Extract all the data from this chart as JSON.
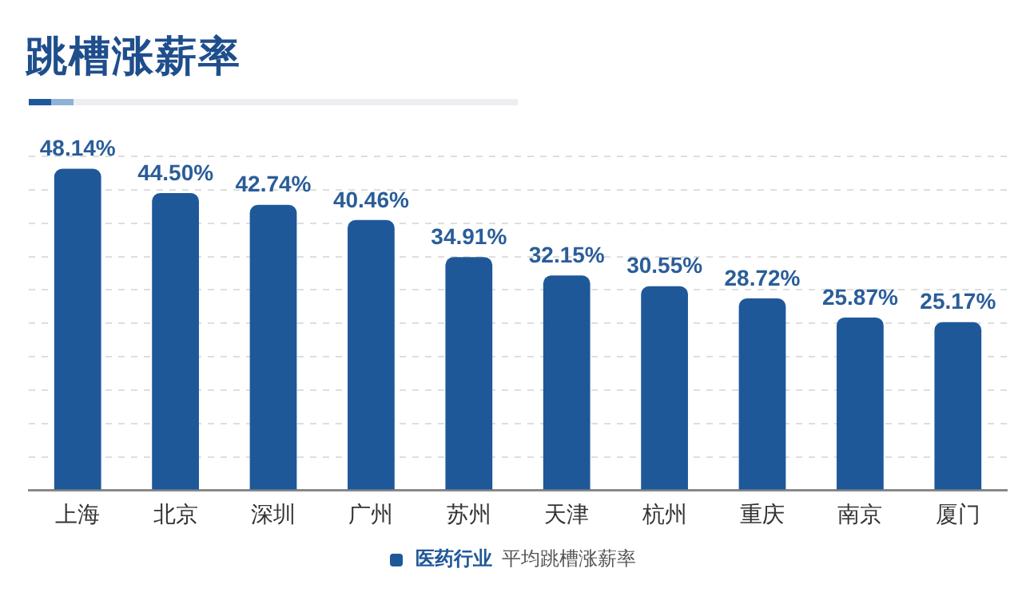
{
  "chart_data": {
    "type": "bar",
    "title": "跳槽涨薪率",
    "legend_title": "医药行业",
    "categories": [
      "上海",
      "北京",
      "深圳",
      "广州",
      "苏州",
      "天津",
      "杭州",
      "重庆",
      "南京",
      "厦门"
    ],
    "series": [
      {
        "name": "平均跳槽涨薪率",
        "color": "#1f5899",
        "values": [
          48.14,
          44.5,
          42.74,
          40.46,
          34.91,
          32.15,
          30.55,
          28.72,
          25.87,
          25.17
        ],
        "value_labels": [
          "48.14%",
          "44.50%",
          "42.74%",
          "40.46%",
          "34.91%",
          "32.15%",
          "30.55%",
          "28.72%",
          "25.87%",
          "25.17%"
        ]
      }
    ],
    "tick_labels": "x",
    "grid": "y",
    "legend": "bottom"
  }
}
